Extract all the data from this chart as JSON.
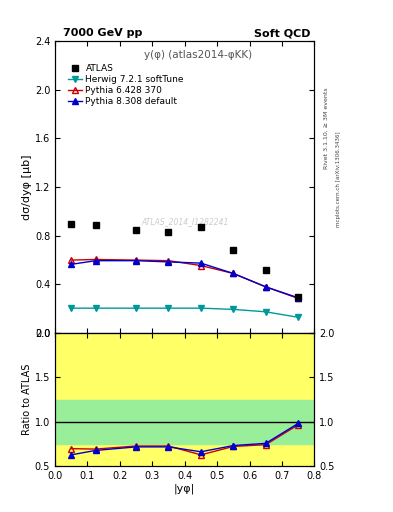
{
  "title_left": "7000 GeV pp",
  "title_right": "Soft QCD",
  "plot_title": "y(φ) (atlas2014-φKK)",
  "ylabel_main": "dσ/dyφ [μb]",
  "ylabel_ratio": "Ratio to ATLAS",
  "xlabel": "|yφ|",
  "right_label1": "Rivet 3.1.10, ≥ 3M events",
  "right_label2": "mcplots.cern.ch [arXiv:1306.3436]",
  "watermark": "ATLAS_2014_I1282241",
  "ylim_main": [
    0.0,
    2.4
  ],
  "ylim_ratio": [
    0.5,
    2.0
  ],
  "yticks_main": [
    0.0,
    0.4,
    0.8,
    1.2,
    1.6,
    2.0,
    2.4
  ],
  "yticks_ratio": [
    0.5,
    1.0,
    1.5,
    2.0
  ],
  "xlim": [
    0.0,
    0.8
  ],
  "atlas_x": [
    0.05,
    0.125,
    0.25,
    0.35,
    0.45,
    0.55,
    0.65,
    0.75
  ],
  "atlas_y": [
    0.9,
    0.885,
    0.845,
    0.83,
    0.875,
    0.68,
    0.52,
    0.3
  ],
  "herwig_x": [
    0.05,
    0.125,
    0.25,
    0.35,
    0.45,
    0.55,
    0.65,
    0.75
  ],
  "herwig_y": [
    0.205,
    0.205,
    0.205,
    0.205,
    0.205,
    0.195,
    0.175,
    0.13
  ],
  "herwig_color": "#009999",
  "pythia6_x": [
    0.05,
    0.125,
    0.25,
    0.35,
    0.45,
    0.55,
    0.65,
    0.75
  ],
  "pythia6_y": [
    0.6,
    0.605,
    0.6,
    0.595,
    0.555,
    0.49,
    0.38,
    0.285
  ],
  "pythia6_color": "#cc0000",
  "pythia8_x": [
    0.05,
    0.125,
    0.25,
    0.35,
    0.45,
    0.55,
    0.65,
    0.75
  ],
  "pythia8_y": [
    0.565,
    0.595,
    0.595,
    0.585,
    0.575,
    0.49,
    0.38,
    0.29
  ],
  "pythia8_color": "#0000cc",
  "ratio_pythia6_x": [
    0.05,
    0.125,
    0.25,
    0.35,
    0.45,
    0.55,
    0.65,
    0.75
  ],
  "ratio_pythia6_y": [
    0.695,
    0.69,
    0.725,
    0.725,
    0.625,
    0.72,
    0.74,
    0.965
  ],
  "ratio_pythia8_x": [
    0.05,
    0.125,
    0.25,
    0.35,
    0.45,
    0.55,
    0.65,
    0.75
  ],
  "ratio_pythia8_y": [
    0.625,
    0.675,
    0.715,
    0.715,
    0.66,
    0.73,
    0.755,
    0.98
  ],
  "yellow_xbounds": [
    0.0,
    0.5,
    0.8
  ],
  "yellow_ylow": [
    0.5,
    0.5
  ],
  "yellow_yhigh": [
    2.0,
    2.0
  ],
  "green_xbounds": [
    0.0,
    0.5,
    0.8
  ],
  "green_ylow": [
    0.75,
    0.75
  ],
  "green_yhigh": [
    1.25,
    1.25
  ],
  "legend_labels": [
    "ATLAS",
    "Herwig 7.2.1 softTune",
    "Pythia 6.428 370",
    "Pythia 8.308 default"
  ]
}
